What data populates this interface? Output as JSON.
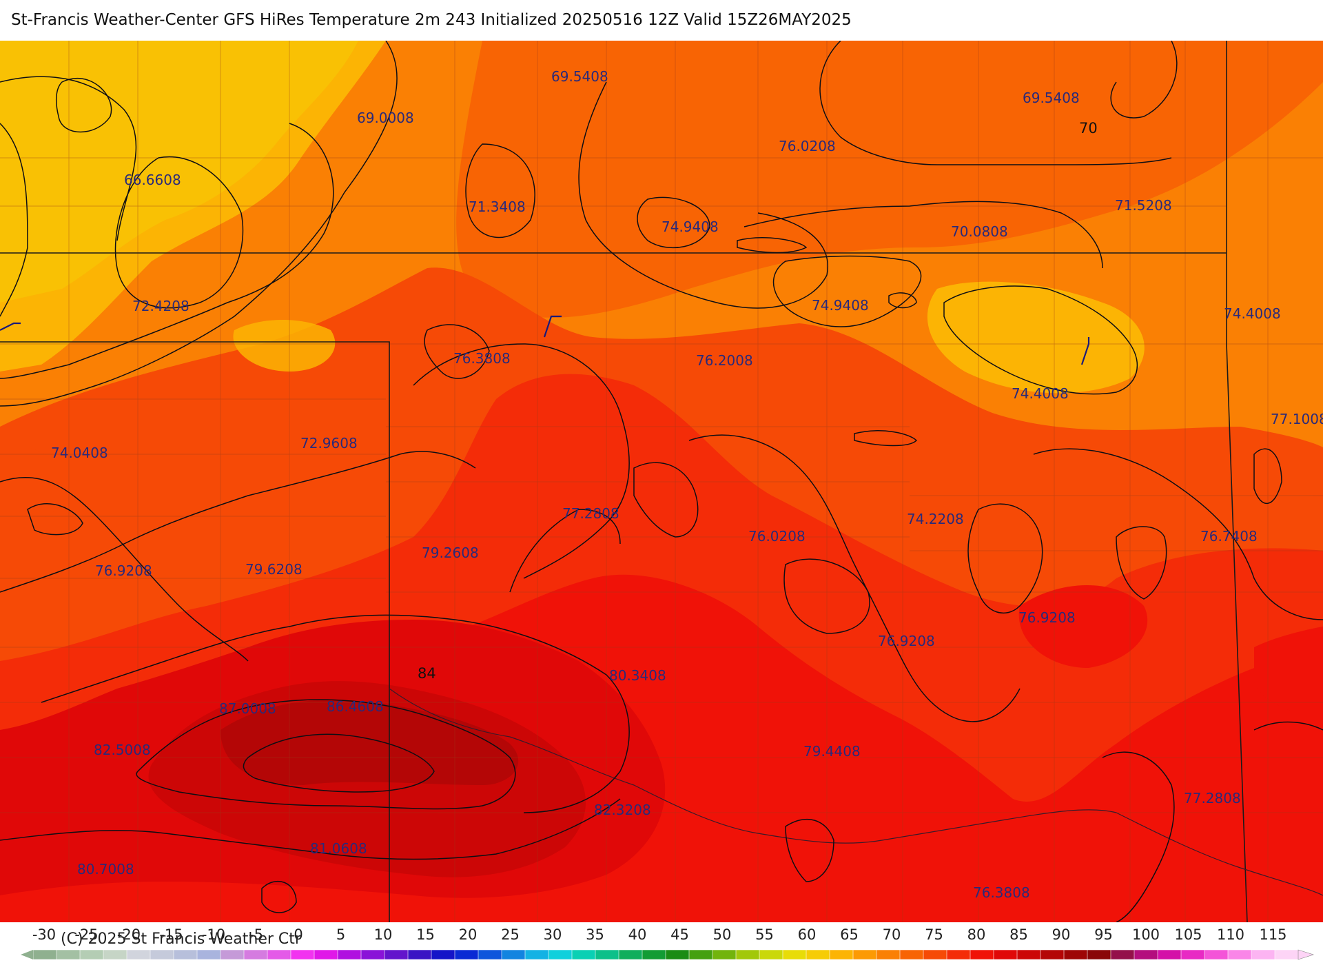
{
  "title": "St-Francis Weather-Center GFS HiRes Temperature 2m  243 Initialized 20250516 12Z Valid 15Z26MAY2025",
  "copyright": "(C) 2025 St Francis Weather Ctr",
  "colorbar": {
    "ticks": [
      "-30",
      "-25",
      "-20",
      "-15",
      "-10",
      "-5",
      "0",
      "5",
      "10",
      "15",
      "20",
      "25",
      "30",
      "35",
      "40",
      "45",
      "50",
      "55",
      "60",
      "65",
      "70",
      "75",
      "80",
      "85",
      "90",
      "95",
      "100",
      "105",
      "110",
      "115"
    ],
    "colors": [
      "#8fb08f",
      "#a3c0a3",
      "#b4cdb4",
      "#c6d5c6",
      "#d1d4dd",
      "#c5cadb",
      "#b7bfdb",
      "#a9b4de",
      "#c59ad8",
      "#d57be0",
      "#e45ae8",
      "#f233f0",
      "#e018e8",
      "#b010e0",
      "#8a12d8",
      "#6314cc",
      "#3a14c4",
      "#1414c8",
      "#0a2ad4",
      "#0e56dc",
      "#1284e0",
      "#14b2e4",
      "#10d0dc",
      "#0ad0b4",
      "#0cc08a",
      "#10ae5c",
      "#129c34",
      "#1a8c14",
      "#44a010",
      "#72b40c",
      "#a2c80a",
      "#cad80a",
      "#e8dc08",
      "#f6cc06",
      "#fcb404",
      "#fc9a04",
      "#fa8004",
      "#f86404",
      "#f64a06",
      "#f42c08",
      "#f01208",
      "#e00808",
      "#cc0606",
      "#b40606",
      "#9e0606",
      "#8a0608",
      "#94104a",
      "#b40e7e",
      "#d410a8",
      "#e82ac4",
      "#f454d8",
      "#fa86e8",
      "#fcb4f2",
      "#fdd4f6"
    ]
  },
  "labels": [
    {
      "text": "69.5408"
    },
    {
      "text": "69.0008"
    },
    {
      "text": "66.6608"
    },
    {
      "text": "71.3408"
    },
    {
      "text": "76.0208"
    },
    {
      "text": "74.9408"
    },
    {
      "text": "69.5408"
    },
    {
      "text": "71.5208"
    },
    {
      "text": "70.0808"
    },
    {
      "text": "72.4208"
    },
    {
      "text": "76.3808"
    },
    {
      "text": "76.2008"
    },
    {
      "text": "74.9408"
    },
    {
      "text": "74.4008"
    },
    {
      "text": "74.4008"
    },
    {
      "text": "77.1008"
    },
    {
      "text": "74.0408"
    },
    {
      "text": "72.9608"
    },
    {
      "text": "77.2808"
    },
    {
      "text": "76.0208"
    },
    {
      "text": "74.2208"
    },
    {
      "text": "76.7408"
    },
    {
      "text": "76.9208"
    },
    {
      "text": "79.6208"
    },
    {
      "text": "79.2608"
    },
    {
      "text": "76.9208"
    },
    {
      "text": "76.9208"
    },
    {
      "text": "87.0008"
    },
    {
      "text": "86.4608"
    },
    {
      "text": "80.3408"
    },
    {
      "text": "82.5008"
    },
    {
      "text": "79.4408"
    },
    {
      "text": "82.3208"
    },
    {
      "text": "81.0608"
    },
    {
      "text": "77.2808"
    },
    {
      "text": "80.7008"
    },
    {
      "text": "76.3808"
    }
  ],
  "isotherm_labels": [
    {
      "text": "70"
    },
    {
      "text": "84"
    }
  ]
}
